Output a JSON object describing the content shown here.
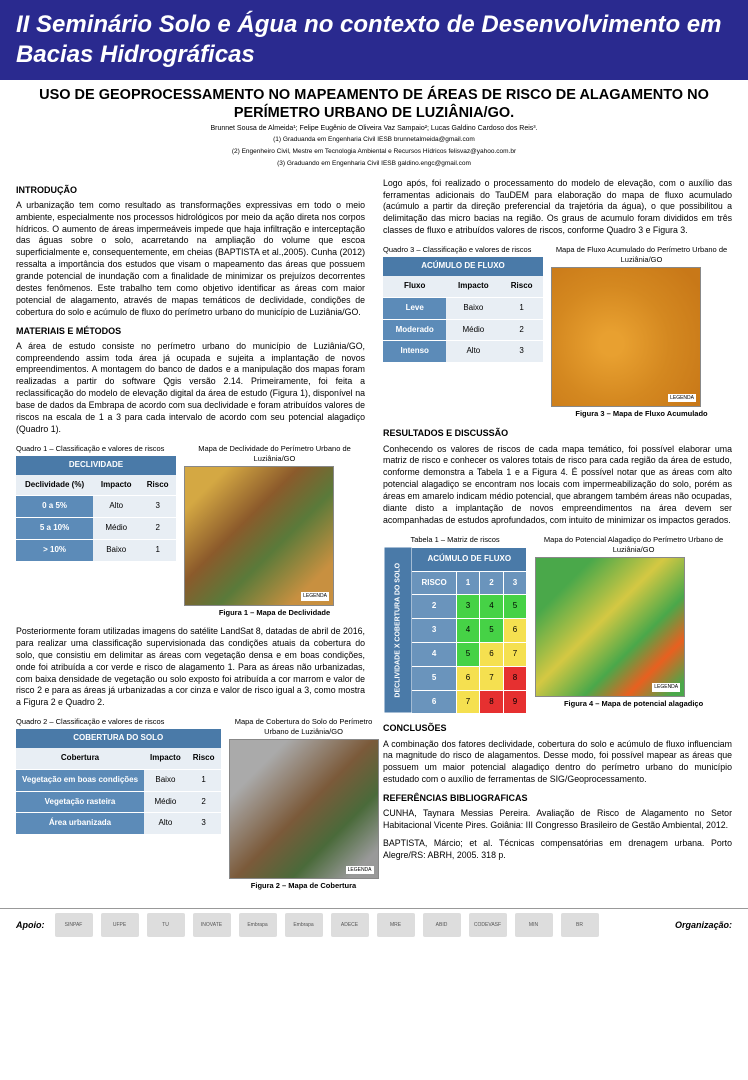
{
  "banner": "II Seminário Solo e Água no contexto de Desenvolvimento em Bacias Hidrográficas",
  "title": "USO DE GEOPROCESSAMENTO NO MAPEAMENTO DE ÁREAS DE RISCO DE ALAGAMENTO NO PERÍMETRO URBANO DE LUZIÂNIA/GO.",
  "authors": "Brunnet Sousa de Almeida¹; Felipe Eugênio de Oliveira Vaz Sampaio²; Lucas Galdino Cardoso dos Reis³.",
  "affil1": "(1) Graduanda em Engenharia Civil IESB brunnetalmeida@gmail.com",
  "affil2": "(2) Engenheiro Civil, Mestre em Tecnologia Ambiental e Recursos Hídricos felisvaz@yahoo.com.br",
  "affil3": "(3) Graduando em Engenharia Civil IESB galdino.engc@gmail.com",
  "h_intro": "INTRODUÇÃO",
  "p_intro": "A urbanização tem como resultado as transformações expressivas em todo o meio ambiente, especialmente nos processos hidrológicos por meio da ação direta nos corpos hídricos. O aumento de áreas impermeáveis impede que haja infiltração e interceptação das águas sobre o solo, acarretando na ampliação do volume que escoa superficialmente e, consequentemente, em cheias (BAPTISTA et al.,2005). Cunha (2012) ressalta a importância dos estudos que visam o mapeamento das áreas que possuem grande potencial de inundação com a finalidade de minimizar os prejuízos decorrentes destes fenômenos. Este trabalho tem como objetivo identificar as áreas com maior potencial de alagamento, através de mapas temáticos de declividade, condições de cobertura do solo e acúmulo de fluxo do perímetro urbano do município de Luziânia/GO.",
  "h_mat": "MATERIAIS E MÉTODOS",
  "p_mat": "A área de estudo consiste no perímetro urbano do município de Luziânia/GO, compreendendo assim toda área já ocupada e sujeita a implantação de novos empreendimentos. A montagem do banco de dados e a manipulação dos mapas foram realizadas a partir do software Qgis versão 2.14. Primeiramente, foi feita a reclassificação do modelo de elevação digital da área de estudo (Figura 1), disponível na base de dados da Embrapa de acordo com sua declividade e foram atribuídos valores de riscos na escala de 1 a 3 para cada intervalo de acordo com seu potencial alagadiço (Quadro 1).",
  "q1_cap": "Quadro 1 – Classificação e valores de riscos",
  "q1_header": "DECLIVIDADE",
  "q1_cols": [
    "Declividade (%)",
    "Impacto",
    "Risco"
  ],
  "q1_r1": [
    "0 a 5%",
    "Alto",
    "3"
  ],
  "q1_r2": [
    "5 a 10%",
    "Médio",
    "2"
  ],
  "q1_r3": [
    "> 10%",
    "Baixo",
    "1"
  ],
  "f1": "Figura 1 – Mapa de Declividade",
  "f1_title": "Mapa de Declividade do Perímetro Urbano de Luziânia/GO",
  "p_mid": "Posteriormente foram utilizadas imagens do satélite LandSat 8, datadas de abril de 2016, para realizar uma classificação supervisionada das condições atuais da cobertura do solo, que consistiu em delimitar as áreas com vegetação densa e em boas condições, onde foi atribuída a cor verde e risco de alagamento 1. Para as áreas não urbanizadas, com baixa densidade de vegetação ou solo exposto foi atribuída a cor marrom e valor de risco 2 e para as áreas já urbanizadas a cor cinza e valor de risco igual a 3, como mostra a Figura 2 e Quadro 2.",
  "q2_cap": "Quadro 2 – Classificação e valores de riscos",
  "q2_header": "COBERTURA DO SOLO",
  "q2_cols": [
    "Cobertura",
    "Impacto",
    "Risco"
  ],
  "q2_r1": [
    "Vegetação em boas condições",
    "Baixo",
    "1"
  ],
  "q2_r2": [
    "Vegetação rasteira",
    "Médio",
    "2"
  ],
  "q2_r3": [
    "Área urbanizada",
    "Alto",
    "3"
  ],
  "f2": "Figura 2 – Mapa de Cobertura",
  "f2_title": "Mapa de Cobertura do Solo do Perímetro Urbano de Luziânia/GO",
  "p_right1": "Logo após, foi realizado o processamento do modelo de elevação, com o auxílio das ferramentas adicionais do TauDEM para elaboração do mapa de fluxo acumulado (acúmulo a partir da direção preferencial da trajetória da água), o que possibilitou a delimitação das micro bacias na região. Os graus de acumulo foram divididos em três classes de fluxo e atribuídos valores de riscos, conforme Quadro 3 e Figura 3.",
  "q3_cap": "Quadro 3 – Classificação e valores de riscos",
  "q3_header": "ACÚMULO DE FLUXO",
  "q3_cols": [
    "Fluxo",
    "Impacto",
    "Risco"
  ],
  "q3_r1": [
    "Leve",
    "Baixo",
    "1"
  ],
  "q3_r2": [
    "Moderado",
    "Médio",
    "2"
  ],
  "q3_r3": [
    "Intenso",
    "Alto",
    "3"
  ],
  "f3": "Figura 3 – Mapa de Fluxo Acumulado",
  "f3_title": "Mapa de Fluxo Acumulado do Perímetro Urbano de Luziânia/GO",
  "h_res": "RESULTADOS E DISCUSSÃO",
  "p_res": "Conhecendo os valores de riscos de cada mapa temático, foi possível elaborar uma matriz de risco e conhecer os valores totais de risco para cada região da área de estudo, conforme demonstra a Tabela 1 e a Figura 4. É possível notar que as áreas com alto potencial alagadiço se encontram nos locais com impermeabilização do solo, porém as áreas em amarelo indicam médio potencial, que abrangem também áreas não ocupadas, diante disto a implantação de novos empreendimentos na área devem ser acompanhadas de estudos aprofundados, com intuito de minimizar os impactos gerados.",
  "t1_cap": "Tabela 1 – Matriz de riscos",
  "t1_top": "ACÚMULO DE FLUXO",
  "t1_side": "DECLIVIDADE X COBERTURA DO SOLO",
  "t1_cols": [
    "RISCO",
    "1",
    "2",
    "3"
  ],
  "matrix": {
    "row_labels": [
      "2",
      "3",
      "4",
      "5",
      "6"
    ],
    "cells": [
      [
        {
          "v": "3",
          "c": "#46d246"
        },
        {
          "v": "4",
          "c": "#46d246"
        },
        {
          "v": "5",
          "c": "#46d246"
        }
      ],
      [
        {
          "v": "4",
          "c": "#46d246"
        },
        {
          "v": "5",
          "c": "#46d246"
        },
        {
          "v": "6",
          "c": "#f5e050"
        }
      ],
      [
        {
          "v": "5",
          "c": "#46d246"
        },
        {
          "v": "6",
          "c": "#f5e050"
        },
        {
          "v": "7",
          "c": "#f5e050"
        }
      ],
      [
        {
          "v": "6",
          "c": "#f5e050"
        },
        {
          "v": "7",
          "c": "#f5e050"
        },
        {
          "v": "8",
          "c": "#e63030"
        }
      ],
      [
        {
          "v": "7",
          "c": "#f5e050"
        },
        {
          "v": "8",
          "c": "#e63030"
        },
        {
          "v": "9",
          "c": "#e63030"
        }
      ]
    ]
  },
  "f4": "Figura 4 – Mapa de potencial alagadiço",
  "f4_title": "Mapa do Potencial Alagadiço do Perímetro Urbano de Luziânia/GO",
  "h_conc": "CONCLUSÕES",
  "p_conc": "A combinação dos fatores declividade, cobertura do solo e acúmulo de fluxo influenciam na magnitude do risco de alagamentos. Desse modo, foi possível mapear as áreas que possuem um maior potencial alagadiço dentro do perímetro urbano do município estudado com o auxílio de ferramentas de SIG/Geoprocessamento.",
  "h_ref": "REFERÊNCIAS BIBLIOGRAFICAS",
  "ref1": "CUNHA, Taynara Messias Pereira. Avaliação de Risco de Alagamento no Setor Habitacional Vicente Pires. Goiânia: III Congresso Brasileiro de Gestão Ambiental, 2012.",
  "ref2": "BAPTISTA, Márcio; et al. Técnicas compensatórias em drenagem urbana. Porto Alegre/RS: ABRH, 2005. 318 p.",
  "apoio": "Apoio:",
  "org": "Organização:",
  "footer_logos": [
    "SINPAF",
    "UFPE",
    "TU",
    "INOVATE",
    "Embrapa",
    "Embrapa",
    "ADECE",
    "MRE",
    "ABID",
    "CODEVASF",
    "MIN",
    "BR"
  ]
}
